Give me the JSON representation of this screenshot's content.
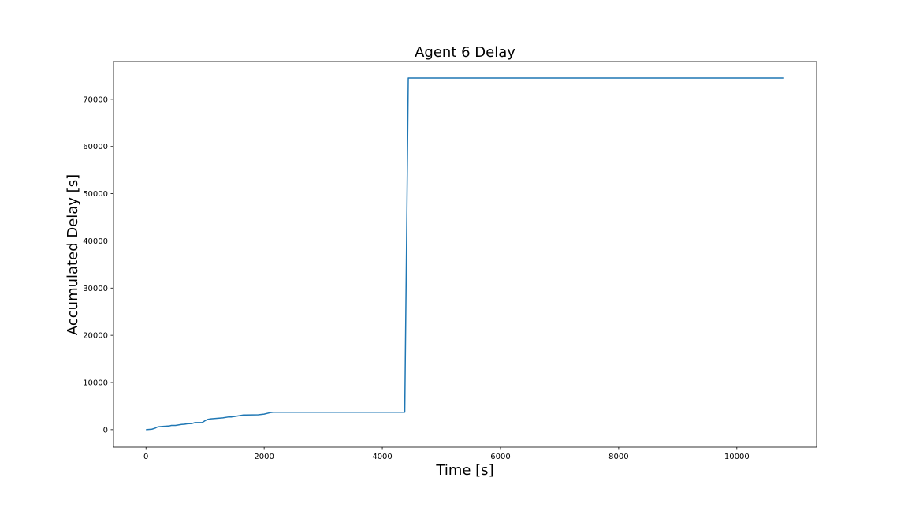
{
  "chart_data": {
    "type": "line",
    "title": "Agent 6 Delay",
    "xlabel": "Time [s]",
    "ylabel": "Accumulated Delay [s]",
    "xlim": [
      -550,
      11350
    ],
    "ylim": [
      -3700,
      78000
    ],
    "xticks": [
      0,
      2000,
      4000,
      6000,
      8000,
      10000
    ],
    "xtick_labels": [
      "0",
      "2000",
      "4000",
      "6000",
      "8000",
      "10000"
    ],
    "yticks": [
      0,
      10000,
      20000,
      30000,
      40000,
      50000,
      60000,
      70000
    ],
    "ytick_labels": [
      "0",
      "10000",
      "20000",
      "30000",
      "40000",
      "50000",
      "60000",
      "70000"
    ],
    "grid": false,
    "legend": "none",
    "series": [
      {
        "color": "#1f77b4",
        "x": [
          0,
          100,
          150,
          200,
          300,
          400,
          430,
          500,
          550,
          600,
          650,
          700,
          780,
          830,
          870,
          950,
          1000,
          1050,
          1100,
          1200,
          1300,
          1400,
          1450,
          1500,
          1600,
          1650,
          1700,
          1900,
          2000,
          2100,
          2150,
          4380,
          4440,
          10800
        ],
        "y": [
          0,
          100,
          300,
          600,
          700,
          800,
          900,
          900,
          1000,
          1100,
          1150,
          1250,
          1300,
          1500,
          1500,
          1500,
          1900,
          2200,
          2300,
          2400,
          2500,
          2700,
          2700,
          2800,
          3000,
          3100,
          3100,
          3150,
          3300,
          3600,
          3700,
          3700,
          74500,
          74500
        ]
      }
    ]
  }
}
